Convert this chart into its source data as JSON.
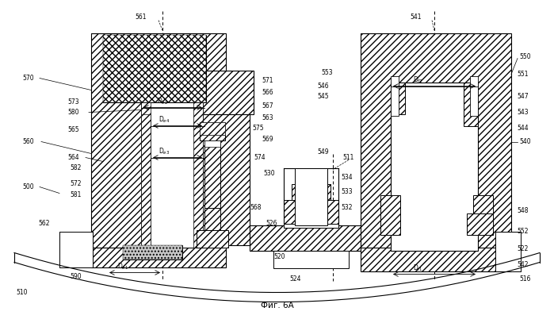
{
  "title": "Фиг. 6А",
  "fig_w": 6.99,
  "fig_h": 4.07,
  "dpi": 100
}
